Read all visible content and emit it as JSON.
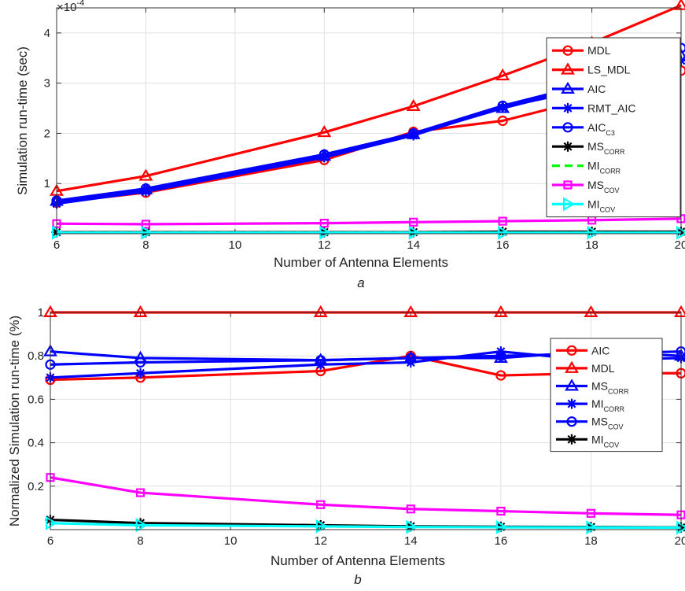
{
  "figure": {
    "panels": [
      {
        "caption": "a",
        "xlabel": "Number of Antenna Elements",
        "ylabel": "Simulation run-time (sec)",
        "multiplier_base": "×10",
        "multiplier_exp": "-4",
        "legend": [
          {
            "main": "MDL",
            "sub": ""
          },
          {
            "main": "LS_MDL",
            "sub": ""
          },
          {
            "main": "AIC",
            "sub": ""
          },
          {
            "main": "RMT_AIC",
            "sub": ""
          },
          {
            "main": "AIC",
            "sub": "C3"
          },
          {
            "main": "MS",
            "sub": "CORR"
          },
          {
            "main": "MI",
            "sub": "CORR"
          },
          {
            "main": "MS",
            "sub": "COV"
          },
          {
            "main": "MI",
            "sub": "COV"
          }
        ]
      },
      {
        "caption": "b",
        "xlabel": "Number of Antenna Elements",
        "ylabel": "Normalized Simulation run-time (%)",
        "legend": [
          {
            "main": "AIC",
            "sub": ""
          },
          {
            "main": "MDL",
            "sub": ""
          },
          {
            "main": "MS",
            "sub": "CORR"
          },
          {
            "main": "MI",
            "sub": "CORR"
          },
          {
            "main": "MS",
            "sub": "COV"
          },
          {
            "main": "MI",
            "sub": "COV"
          }
        ]
      }
    ]
  },
  "chart_data": [
    {
      "type": "line",
      "title": "",
      "xlabel": "Number of Antenna Elements",
      "ylabel": "Simulation run-time (sec)",
      "y_multiplier": "×10^-4",
      "xlim": [
        6,
        20
      ],
      "ylim": [
        0,
        4.5
      ],
      "xticks": [
        6,
        8,
        10,
        12,
        14,
        16,
        18,
        20
      ],
      "yticks": [
        1,
        2,
        3,
        4
      ],
      "grid": true,
      "legend_position": "top-right",
      "x": [
        6,
        8,
        12,
        14,
        16,
        18,
        20
      ],
      "series": [
        {
          "name": "MDL",
          "color": "#ff0000",
          "marker": "circle",
          "dash": "solid",
          "values": [
            0.62,
            0.82,
            1.47,
            2.03,
            2.25,
            2.7,
            3.25
          ]
        },
        {
          "name": "LS_MDL",
          "color": "#ff0000",
          "marker": "triangle",
          "dash": "solid",
          "values": [
            0.85,
            1.15,
            2.02,
            2.54,
            3.15,
            3.8,
            4.55
          ]
        },
        {
          "name": "AIC",
          "color": "#0000ff",
          "marker": "triangle",
          "dash": "solid",
          "values": [
            0.65,
            0.88,
            1.55,
            1.98,
            2.5,
            2.95,
            3.55
          ]
        },
        {
          "name": "RMT_AIC",
          "color": "#0000ff",
          "marker": "asterisk",
          "dash": "solid",
          "values": [
            0.6,
            0.84,
            1.52,
            1.96,
            2.52,
            2.9,
            3.45
          ]
        },
        {
          "name": "AICC3",
          "color": "#0000ff",
          "marker": "circle",
          "dash": "solid",
          "values": [
            0.66,
            0.9,
            1.58,
            2.0,
            2.55,
            3.0,
            3.7
          ]
        },
        {
          "name": "MSCORR",
          "color": "#000000",
          "marker": "asterisk",
          "dash": "solid",
          "values": [
            0.03,
            0.03,
            0.03,
            0.03,
            0.04,
            0.04,
            0.04
          ]
        },
        {
          "name": "MICORR",
          "color": "#00ff00",
          "marker": "none",
          "dash": "dashed",
          "values": [
            0.02,
            0.02,
            0.02,
            0.02,
            0.02,
            0.02,
            0.02
          ]
        },
        {
          "name": "MSCOV",
          "color": "#ff00ff",
          "marker": "square",
          "dash": "solid",
          "values": [
            0.2,
            0.19,
            0.21,
            0.23,
            0.25,
            0.27,
            0.3
          ]
        },
        {
          "name": "MICOV",
          "color": "#00ffff",
          "marker": "triangle-right",
          "dash": "solid",
          "values": [
            0.02,
            0.02,
            0.02,
            0.02,
            0.02,
            0.02,
            0.02
          ]
        }
      ]
    },
    {
      "type": "line",
      "title": "",
      "xlabel": "Number of Antenna Elements",
      "ylabel": "Normalized Simulation run-time (%)",
      "xlim": [
        6,
        20
      ],
      "ylim": [
        0,
        1
      ],
      "xticks": [
        6,
        8,
        10,
        12,
        14,
        16,
        18,
        20
      ],
      "yticks": [
        0.2,
        0.4,
        0.6,
        0.8,
        1
      ],
      "grid": true,
      "legend_position": "right",
      "x": [
        6,
        8,
        12,
        14,
        16,
        18,
        20
      ],
      "series": [
        {
          "name": "AIC",
          "color": "#ff0000",
          "marker": "circle",
          "dash": "solid",
          "values": [
            0.69,
            0.7,
            0.73,
            0.8,
            0.71,
            0.72,
            0.72
          ]
        },
        {
          "name": "MDL",
          "color": "#ff0000",
          "marker": "triangle",
          "dash": "solid",
          "values": [
            1.0,
            1.0,
            1.0,
            1.0,
            1.0,
            1.0,
            1.0
          ]
        },
        {
          "name": "MSCORR",
          "color": "#0000ff",
          "marker": "triangle",
          "dash": "solid",
          "values": [
            0.82,
            0.79,
            0.78,
            0.79,
            0.79,
            0.82,
            0.8
          ]
        },
        {
          "name": "MICORR",
          "color": "#0000ff",
          "marker": "asterisk",
          "dash": "solid",
          "values": [
            0.7,
            0.72,
            0.76,
            0.77,
            0.82,
            0.78,
            0.79
          ]
        },
        {
          "name": "MSCOV",
          "color": "#0000ff",
          "marker": "circle",
          "dash": "solid",
          "values": [
            0.76,
            0.77,
            0.78,
            0.79,
            0.8,
            0.81,
            0.82
          ]
        },
        {
          "name": "MICOV",
          "color": "#000000",
          "marker": "asterisk",
          "dash": "solid",
          "values": [
            0.045,
            0.03,
            0.02,
            0.015,
            0.013,
            0.012,
            0.01
          ]
        },
        {
          "name": "",
          "color": "#ff00ff",
          "marker": "square",
          "dash": "solid",
          "values": [
            0.24,
            0.17,
            0.115,
            0.095,
            0.085,
            0.075,
            0.068
          ]
        },
        {
          "name": "",
          "color": "#00ffff",
          "marker": "triangle-right",
          "dash": "solid",
          "values": [
            0.03,
            0.02,
            0.015,
            0.012,
            0.011,
            0.01,
            0.009
          ]
        }
      ]
    }
  ]
}
